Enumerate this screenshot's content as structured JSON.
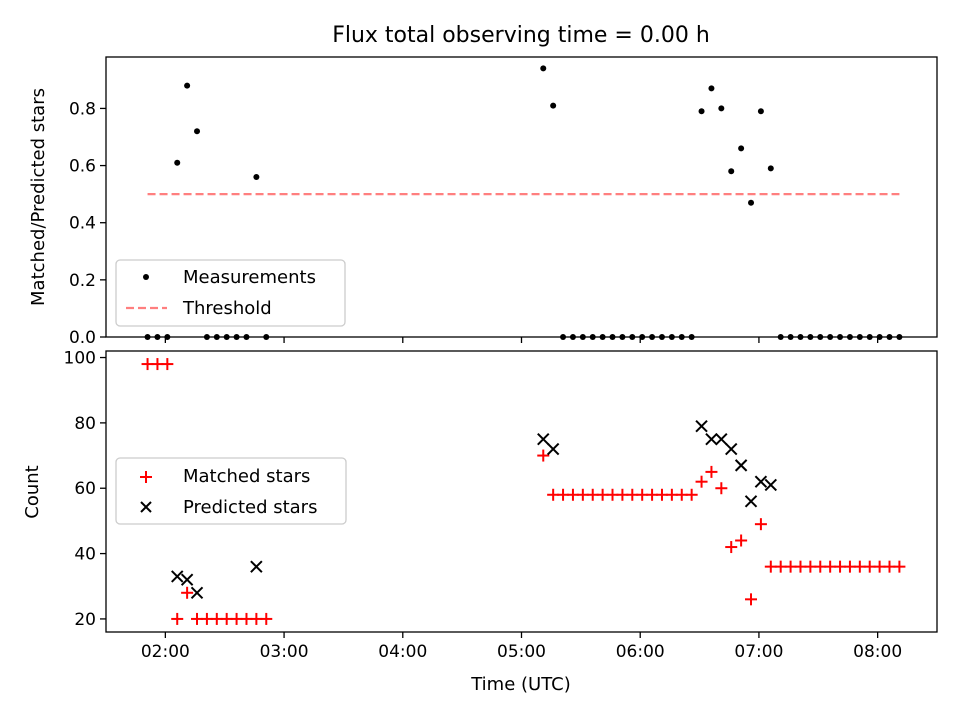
{
  "chart_data": [
    {
      "type": "scatter",
      "title": "Flux total observing time = 0.00 h",
      "ylabel": "Matched/Predicted stars",
      "xlim": [
        "01:30",
        "08:30"
      ],
      "ylim": [
        0,
        0.98
      ],
      "grid": false,
      "legend_position": "lower-left",
      "x_ticks": [
        "02:00",
        "03:00",
        "04:00",
        "05:00",
        "06:00",
        "07:00",
        "08:00"
      ],
      "y_ticks": [
        "0.0",
        "0.2",
        "0.4",
        "0.6",
        "0.8"
      ],
      "series": [
        {
          "name": "Measurements",
          "marker": "dot",
          "color": "#000000",
          "points": [
            [
              "01:51",
              0.0
            ],
            [
              "01:56",
              0.0
            ],
            [
              "02:01",
              0.0
            ],
            [
              "02:06",
              0.61
            ],
            [
              "02:11",
              0.88
            ],
            [
              "02:16",
              0.72
            ],
            [
              "02:21",
              0.0
            ],
            [
              "02:26",
              0.0
            ],
            [
              "02:31",
              0.0
            ],
            [
              "02:36",
              0.0
            ],
            [
              "02:41",
              0.0
            ],
            [
              "02:46",
              0.56
            ],
            [
              "02:51",
              0.0
            ],
            [
              "05:11",
              0.94
            ],
            [
              "05:16",
              0.81
            ],
            [
              "05:21",
              0.0
            ],
            [
              "05:26",
              0.0
            ],
            [
              "05:31",
              0.0
            ],
            [
              "05:36",
              0.0
            ],
            [
              "05:41",
              0.0
            ],
            [
              "05:46",
              0.0
            ],
            [
              "05:51",
              0.0
            ],
            [
              "05:56",
              0.0
            ],
            [
              "06:01",
              0.0
            ],
            [
              "06:06",
              0.0
            ],
            [
              "06:11",
              0.0
            ],
            [
              "06:16",
              0.0
            ],
            [
              "06:21",
              0.0
            ],
            [
              "06:26",
              0.0
            ],
            [
              "06:31",
              0.79
            ],
            [
              "06:36",
              0.87
            ],
            [
              "06:41",
              0.8
            ],
            [
              "06:46",
              0.58
            ],
            [
              "06:51",
              0.66
            ],
            [
              "06:56",
              0.47
            ],
            [
              "07:01",
              0.79
            ],
            [
              "07:06",
              0.59
            ],
            [
              "07:11",
              0.0
            ],
            [
              "07:16",
              0.0
            ],
            [
              "07:21",
              0.0
            ],
            [
              "07:26",
              0.0
            ],
            [
              "07:31",
              0.0
            ],
            [
              "07:36",
              0.0
            ],
            [
              "07:41",
              0.0
            ],
            [
              "07:46",
              0.0
            ],
            [
              "07:51",
              0.0
            ],
            [
              "07:56",
              0.0
            ],
            [
              "08:01",
              0.0
            ],
            [
              "08:06",
              0.0
            ],
            [
              "08:11",
              0.0
            ]
          ]
        },
        {
          "name": "Threshold",
          "marker": "dashed-line",
          "color": "#ff7f7f",
          "points": [
            [
              "01:51",
              0.5
            ],
            [
              "08:11",
              0.5
            ]
          ]
        }
      ]
    },
    {
      "type": "scatter",
      "xlabel": "Time (UTC)",
      "ylabel": "Count",
      "xlim": [
        "01:30",
        "08:30"
      ],
      "ylim": [
        16,
        102
      ],
      "grid": false,
      "legend_position": "center-left",
      "x_ticks": [
        "02:00",
        "03:00",
        "04:00",
        "05:00",
        "06:00",
        "07:00",
        "08:00"
      ],
      "y_ticks": [
        "20",
        "40",
        "60",
        "80",
        "100"
      ],
      "series": [
        {
          "name": "Matched stars",
          "marker": "plus",
          "color": "#ff0000",
          "points": [
            [
              "01:51",
              98
            ],
            [
              "01:56",
              98
            ],
            [
              "02:01",
              98
            ],
            [
              "02:06",
              20
            ],
            [
              "02:11",
              28
            ],
            [
              "02:16",
              20
            ],
            [
              "02:21",
              20
            ],
            [
              "02:26",
              20
            ],
            [
              "02:31",
              20
            ],
            [
              "02:36",
              20
            ],
            [
              "02:41",
              20
            ],
            [
              "02:46",
              20
            ],
            [
              "02:51",
              20
            ],
            [
              "05:11",
              70
            ],
            [
              "05:16",
              58
            ],
            [
              "05:21",
              58
            ],
            [
              "05:26",
              58
            ],
            [
              "05:31",
              58
            ],
            [
              "05:36",
              58
            ],
            [
              "05:41",
              58
            ],
            [
              "05:46",
              58
            ],
            [
              "05:51",
              58
            ],
            [
              "05:56",
              58
            ],
            [
              "06:01",
              58
            ],
            [
              "06:06",
              58
            ],
            [
              "06:11",
              58
            ],
            [
              "06:16",
              58
            ],
            [
              "06:21",
              58
            ],
            [
              "06:26",
              58
            ],
            [
              "06:31",
              62
            ],
            [
              "06:36",
              65
            ],
            [
              "06:41",
              60
            ],
            [
              "06:46",
              42
            ],
            [
              "06:51",
              44
            ],
            [
              "06:56",
              26
            ],
            [
              "07:01",
              49
            ],
            [
              "07:06",
              36
            ],
            [
              "07:11",
              36
            ],
            [
              "07:16",
              36
            ],
            [
              "07:21",
              36
            ],
            [
              "07:26",
              36
            ],
            [
              "07:31",
              36
            ],
            [
              "07:36",
              36
            ],
            [
              "07:41",
              36
            ],
            [
              "07:46",
              36
            ],
            [
              "07:51",
              36
            ],
            [
              "07:56",
              36
            ],
            [
              "08:01",
              36
            ],
            [
              "08:06",
              36
            ],
            [
              "08:11",
              36
            ]
          ]
        },
        {
          "name": "Predicted stars",
          "marker": "x",
          "color": "#000000",
          "points": [
            [
              "02:06",
              33
            ],
            [
              "02:11",
              32
            ],
            [
              "02:16",
              28
            ],
            [
              "02:46",
              36
            ],
            [
              "05:11",
              75
            ],
            [
              "05:16",
              72
            ],
            [
              "06:31",
              79
            ],
            [
              "06:36",
              75
            ],
            [
              "06:41",
              75
            ],
            [
              "06:46",
              72
            ],
            [
              "06:51",
              67
            ],
            [
              "06:56",
              56
            ],
            [
              "07:01",
              62
            ],
            [
              "07:06",
              61
            ]
          ]
        }
      ]
    }
  ]
}
